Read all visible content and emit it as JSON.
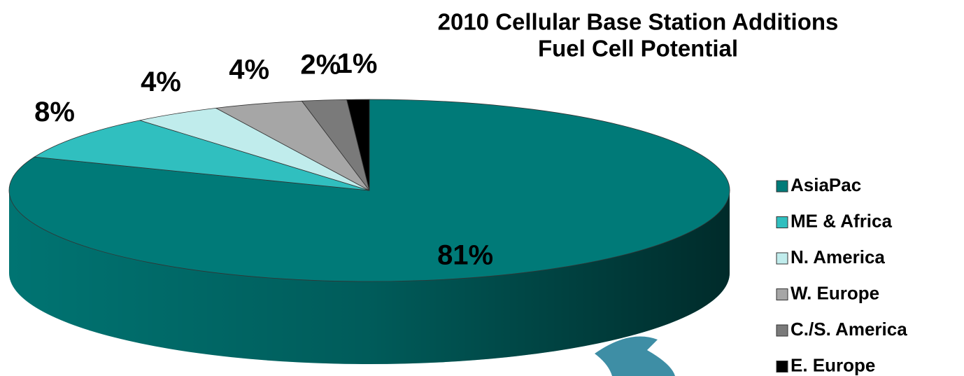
{
  "chart_data": {
    "type": "pie3d",
    "title": "2010 Cellular Base Station Additions",
    "subtitle": "Fuel Cell Potential",
    "categories": [
      "AsiaPac",
      "ME & Africa",
      "N. America",
      "W. Europe",
      "C./S. America",
      "E. Europe"
    ],
    "values": [
      81,
      8,
      4,
      4,
      2,
      1
    ],
    "value_labels": [
      "81%",
      "8%",
      "4%",
      "4%",
      "2%",
      "1%"
    ],
    "colors": [
      "#007a78",
      "#30bfbf",
      "#c0ecec",
      "#a6a6a6",
      "#7a7a7a",
      "#000000"
    ],
    "legend": "right"
  }
}
